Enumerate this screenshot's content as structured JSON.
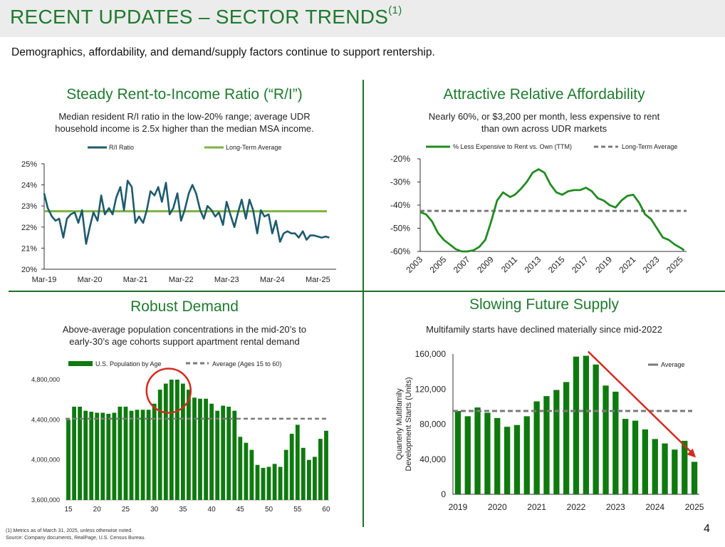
{
  "title": "RECENT UPDATES – SECTOR TRENDS",
  "title_footnote": "(1)",
  "subtitle": "Demographics, affordability, and demand/supply factors continue to support rentership.",
  "panels": {
    "ri": {
      "title": "Steady Rent-to-Income Ratio (“R/I”)",
      "desc_line1": "Median resident R/I ratio in the low-20% range; average UDR",
      "desc_line2": "household income is 2.5x higher than the median MSA income."
    },
    "afford": {
      "title": "Attractive Relative Affordability",
      "desc_line1": "Nearly 60%, or $3,200 per month, less expensive to rent",
      "desc_line2": "than own across UDR markets"
    },
    "demand": {
      "title": "Robust Demand",
      "desc_line1": "Above-average population concentrations in the mid-20’s to",
      "desc_line2": "early-30’s age cohorts support apartment rental demand"
    },
    "supply": {
      "title": "Slowing Future Supply",
      "desc_line1": "Multifamily starts have declined materially since mid-2022"
    }
  },
  "colors": {
    "title_green": "#1f7a2e",
    "ri_line": "#1e5a6e",
    "avg_green": "#7db342",
    "line_green": "#228b22",
    "bar_green": "#0e7a0e",
    "dash_gray": "#7a7a7a",
    "circle_red": "#d42a20"
  },
  "chart_data": [
    {
      "id": "ri",
      "type": "line",
      "title": "Steady Rent-to-Income Ratio (“R/I”)",
      "legend": [
        "R/I Ratio",
        "Long-Term Average"
      ],
      "x_tick_labels": [
        "Mar-19",
        "Mar-20",
        "Mar-21",
        "Mar-22",
        "Mar-23",
        "Mar-24",
        "Mar-25"
      ],
      "ylim": [
        20,
        25
      ],
      "y_ticks": [
        20,
        21,
        22,
        23,
        24,
        25
      ],
      "y_tick_labels": [
        "20%",
        "21%",
        "22%",
        "23%",
        "24%",
        "25%"
      ],
      "xlim": [
        2019,
        2025.4
      ],
      "long_term_average": 22.75,
      "series": [
        {
          "name": "R/I Ratio",
          "x": [
            2019.0,
            2019.08,
            2019.17,
            2019.25,
            2019.33,
            2019.42,
            2019.5,
            2019.58,
            2019.67,
            2019.75,
            2019.83,
            2019.92,
            2020.0,
            2020.08,
            2020.17,
            2020.25,
            2020.33,
            2020.42,
            2020.5,
            2020.58,
            2020.67,
            2020.75,
            2020.83,
            2020.92,
            2021.0,
            2021.08,
            2021.17,
            2021.25,
            2021.33,
            2021.42,
            2021.5,
            2021.58,
            2021.67,
            2021.75,
            2021.83,
            2021.92,
            2022.0,
            2022.08,
            2022.17,
            2022.25,
            2022.33,
            2022.42,
            2022.5,
            2022.58,
            2022.67,
            2022.75,
            2022.83,
            2022.92,
            2023.0,
            2023.08,
            2023.17,
            2023.25,
            2023.33,
            2023.42,
            2023.5,
            2023.58,
            2023.67,
            2023.75,
            2023.83,
            2023.92,
            2024.0,
            2024.08,
            2024.17,
            2024.25,
            2024.33,
            2024.42,
            2024.5,
            2024.58,
            2024.67,
            2024.75,
            2024.83,
            2024.92,
            2025.0,
            2025.08,
            2025.17,
            2025.25
          ],
          "values": [
            23.6,
            22.9,
            22.5,
            22.3,
            22.4,
            21.5,
            22.4,
            22.6,
            22.7,
            22.2,
            22.8,
            21.2,
            22.0,
            22.7,
            22.3,
            23.5,
            22.6,
            22.9,
            22.6,
            23.4,
            23.9,
            22.8,
            24.2,
            23.9,
            22.2,
            22.5,
            22.2,
            22.8,
            23.7,
            23.5,
            23.9,
            23.2,
            24.1,
            22.6,
            22.9,
            23.6,
            22.3,
            22.8,
            23.6,
            24.0,
            23.6,
            22.8,
            22.4,
            23.0,
            22.8,
            22.5,
            22.7,
            22.1,
            23.2,
            22.6,
            22.0,
            22.7,
            23.3,
            22.4,
            23.3,
            22.8,
            21.7,
            22.8,
            22.5,
            22.6,
            21.7,
            22.3,
            21.3,
            21.7,
            21.8,
            21.7,
            21.7,
            21.5,
            21.8,
            21.4,
            21.6,
            21.6,
            21.55,
            21.5,
            21.55,
            21.5
          ]
        }
      ]
    },
    {
      "id": "afford",
      "type": "line",
      "title": "Attractive Relative Affordability",
      "legend": [
        "% Less Expensive to Rent vs. Own (TTM)",
        "Long-Term Average"
      ],
      "x_tick_labels": [
        "2003",
        "2005",
        "2007",
        "2009",
        "2011",
        "2013",
        "2015",
        "2017",
        "2019",
        "2021",
        "2023",
        "2025"
      ],
      "ylim": [
        -60,
        -20
      ],
      "y_ticks": [
        -60,
        -50,
        -40,
        -30,
        -20
      ],
      "y_tick_labels": [
        "-60%",
        "-50%",
        "-40%",
        "-30%",
        "-20%"
      ],
      "xlim": [
        2003,
        2025.5
      ],
      "long_term_average": -42.5,
      "series": [
        {
          "name": "% Less Expensive to Rent vs. Own (TTM)",
          "x": [
            2003,
            2003.5,
            2004,
            2004.5,
            2005,
            2005.5,
            2006,
            2006.5,
            2007,
            2007.5,
            2008,
            2008.5,
            2009,
            2009.5,
            2010,
            2010.3,
            2010.6,
            2011,
            2011.5,
            2012,
            2012.5,
            2013,
            2013.5,
            2014,
            2014.5,
            2015,
            2015.5,
            2016,
            2016.5,
            2017,
            2017.5,
            2018,
            2018.5,
            2019,
            2019.5,
            2020,
            2020.5,
            2021,
            2021.5,
            2022,
            2022.5,
            2023,
            2023.5,
            2024,
            2024.5,
            2025,
            2025.3
          ],
          "values": [
            -43,
            -44,
            -47,
            -52,
            -55,
            -57,
            -59,
            -60,
            -60,
            -59.5,
            -58,
            -55,
            -47,
            -38,
            -34.5,
            -35.5,
            -36.5,
            -35.5,
            -33,
            -30,
            -26,
            -24.5,
            -26,
            -31,
            -34.5,
            -35.5,
            -34,
            -33.5,
            -33.5,
            -32.5,
            -34,
            -37,
            -38,
            -40,
            -41,
            -38,
            -36,
            -35.5,
            -39,
            -44,
            -46,
            -50,
            -54,
            -55,
            -57,
            -58.5,
            -59.5
          ]
        }
      ]
    },
    {
      "id": "demand",
      "type": "bar",
      "title": "Robust Demand",
      "legend": [
        "U.S. Population by Age",
        "Average (Ages 15 to 60)"
      ],
      "ylim": [
        3600000,
        4800000
      ],
      "y_ticks": [
        3600000,
        4000000,
        4400000,
        4800000
      ],
      "y_tick_labels": [
        "3,600,000",
        "4,000,000",
        "4,400,000",
        "4,800,000"
      ],
      "x_tick_labels": [
        "15",
        "20",
        "25",
        "30",
        "35",
        "40",
        "45",
        "50",
        "55",
        "60"
      ],
      "average": 4410000,
      "highlight_ages": [
        30,
        35
      ],
      "categories": [
        15,
        16,
        17,
        18,
        19,
        20,
        21,
        22,
        23,
        24,
        25,
        26,
        27,
        28,
        29,
        30,
        31,
        32,
        33,
        34,
        35,
        36,
        37,
        38,
        39,
        40,
        41,
        42,
        43,
        44,
        45,
        46,
        47,
        48,
        49,
        50,
        51,
        52,
        53,
        54,
        55,
        56,
        57,
        58,
        59,
        60
      ],
      "values": [
        4400000,
        4530000,
        4530000,
        4490000,
        4480000,
        4470000,
        4470000,
        4460000,
        4470000,
        4530000,
        4530000,
        4490000,
        4500000,
        4500000,
        4500000,
        4560000,
        4700000,
        4760000,
        4800000,
        4800000,
        4760000,
        4700000,
        4620000,
        4610000,
        4610000,
        4560000,
        4490000,
        4540000,
        4530000,
        4490000,
        4230000,
        4170000,
        4100000,
        3950000,
        3920000,
        3930000,
        3960000,
        3930000,
        4100000,
        4260000,
        4350000,
        4120000,
        4000000,
        4030000,
        4210000,
        4290000
      ]
    },
    {
      "id": "supply",
      "type": "bar",
      "title": "Slowing Future Supply",
      "legend": [
        "Average"
      ],
      "ylabel": "Quarterly Multifamily Development Starts (Units)",
      "ylim": [
        0,
        160000
      ],
      "y_ticks": [
        0,
        40000,
        80000,
        120000,
        160000
      ],
      "y_tick_labels": [
        "0",
        "40,000",
        "80,000",
        "120,000",
        "160,000"
      ],
      "x_tick_labels": [
        "2019",
        "2020",
        "2021",
        "2022",
        "2023",
        "2024",
        "2025"
      ],
      "average": 95000,
      "categories": [
        "2019Q1",
        "2019Q2",
        "2019Q3",
        "2019Q4",
        "2020Q1",
        "2020Q2",
        "2020Q3",
        "2020Q4",
        "2021Q1",
        "2021Q2",
        "2021Q3",
        "2021Q4",
        "2022Q1",
        "2022Q2",
        "2022Q3",
        "2022Q4",
        "2023Q1",
        "2023Q2",
        "2023Q3",
        "2023Q4",
        "2024Q1",
        "2024Q2",
        "2024Q3",
        "2024Q4",
        "2025Q1"
      ],
      "values": [
        95000,
        89000,
        99000,
        93000,
        87000,
        77000,
        79000,
        89000,
        106000,
        112000,
        119000,
        128000,
        157000,
        158000,
        148000,
        124000,
        117000,
        86000,
        84000,
        74000,
        63000,
        58000,
        51000,
        61000,
        37000
      ]
    }
  ],
  "footnotes": {
    "line1": "(1)   Metrics as of March 31, 2025, unless otherwise noted.",
    "line2": "Source: Company documents, RealPage, U.S. Census Bureau."
  },
  "page_number": "4"
}
